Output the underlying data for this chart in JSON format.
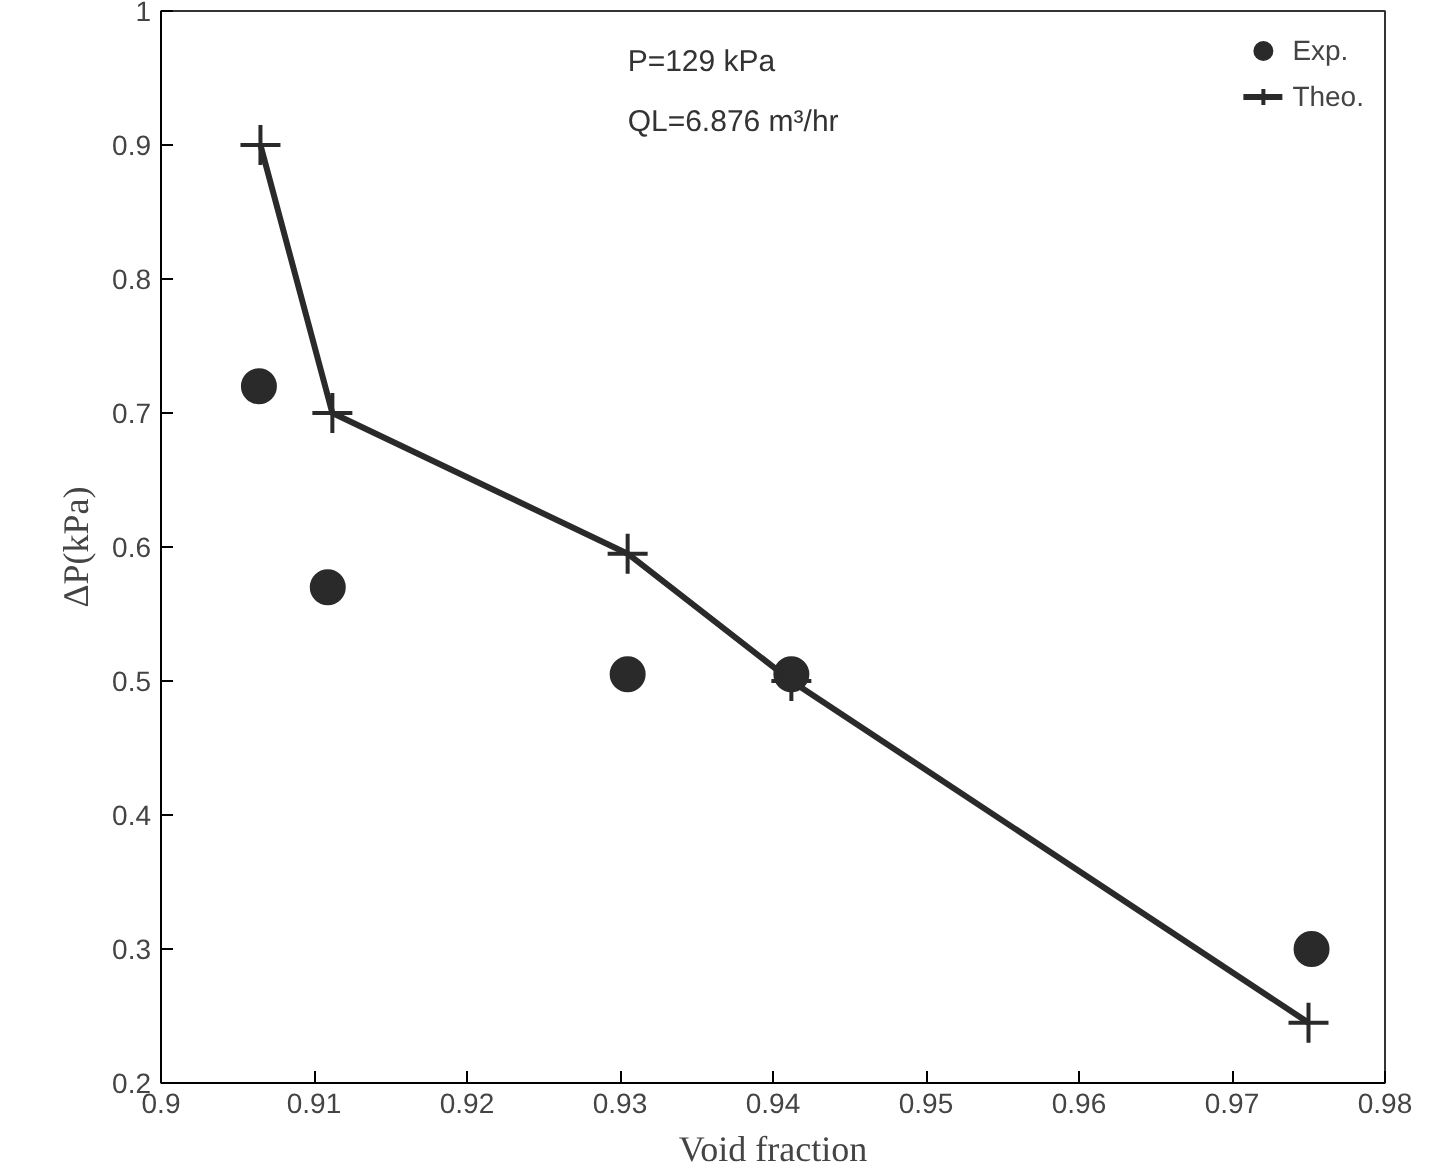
{
  "chart_data": {
    "type": "line",
    "xlabel": "Void fraction",
    "ylabel": "ΔP(kPa)",
    "xlim": [
      0.9,
      0.98
    ],
    "xticks": [
      0.9,
      0.91,
      0.92,
      0.93,
      0.94,
      0.95,
      0.96,
      0.97,
      0.98
    ],
    "ylim": [
      0.2,
      1
    ],
    "yticks": [
      0.2,
      0.3,
      0.4,
      0.5,
      0.6,
      0.7,
      0.8,
      0.9,
      1
    ],
    "grid": false,
    "legend": "top right",
    "annotations": [
      "P=129 kPa",
      "QL=6.876 m³/hr"
    ],
    "series": [
      {
        "name": "Exp.",
        "type": "scatter",
        "marker": "circle",
        "color": "#2a2a2a",
        "x": [
          0.9064,
          0.9109,
          0.9305,
          0.9412,
          0.9752
        ],
        "values": [
          0.72,
          0.57,
          0.505,
          0.505,
          0.3
        ]
      },
      {
        "name": "Theo.",
        "marker": "cross",
        "color": "#2a2a2a",
        "x": [
          0.9065,
          0.9112,
          0.9305,
          0.9412,
          0.975
        ],
        "values": [
          0.9,
          0.7,
          0.595,
          0.5,
          0.245
        ]
      }
    ]
  }
}
